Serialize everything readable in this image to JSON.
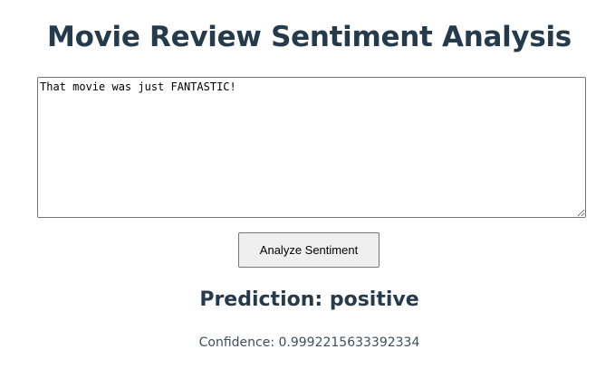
{
  "header": {
    "title": "Movie Review Sentiment Analysis"
  },
  "review": {
    "value": "That movie was just FANTASTIC!",
    "placeholder": ""
  },
  "actions": {
    "analyze_label": "Analyze Sentiment"
  },
  "result": {
    "prediction_label": "Prediction: positive",
    "confidence_label": "Confidence: 0.9992215633392334"
  },
  "colors": {
    "heading": "#253a4b",
    "button_bg": "#efefef",
    "border": "#767676"
  }
}
